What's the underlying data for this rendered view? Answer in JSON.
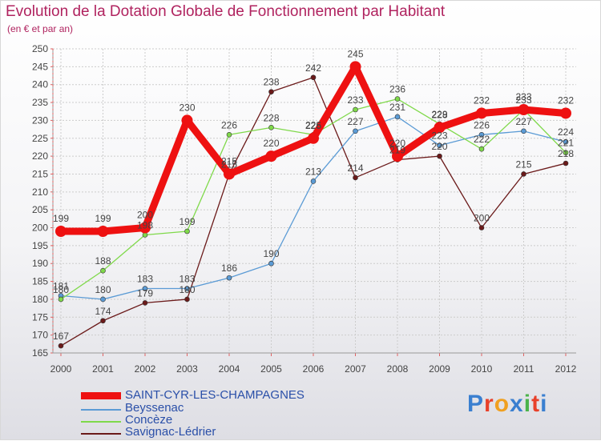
{
  "title": "Evolution de la Dotation Globale de Fonctionnement par Habitant",
  "subtitle": "(en € et par an)",
  "brand": "Proxiti",
  "chart_data": {
    "type": "line",
    "title": "Evolution de la Dotation Globale de Fonctionnement par Habitant",
    "ylabel": "(en € et par an)",
    "x": [
      "2000",
      "2001",
      "2002",
      "2003",
      "2004",
      "2005",
      "2006",
      "2007",
      "2008",
      "2009",
      "2010",
      "2011",
      "2012"
    ],
    "ylim": [
      165,
      250
    ],
    "yticks": [
      165,
      170,
      175,
      180,
      185,
      190,
      195,
      200,
      205,
      210,
      215,
      220,
      225,
      230,
      235,
      240,
      245,
      250
    ],
    "grid": true,
    "legend": "bottom",
    "series": [
      {
        "name": "Beyssenac",
        "color": "#5b9bd5",
        "values": [
          181,
          180,
          183,
          183,
          186,
          190,
          213,
          227,
          231,
          223,
          226,
          227,
          224
        ]
      },
      {
        "name": "Concèze",
        "color": "#7fd94a",
        "values": [
          180,
          188,
          198,
          199,
          226,
          228,
          226,
          233,
          236,
          229,
          222,
          233,
          221
        ]
      },
      {
        "name": "Savignac-Lédrier",
        "color": "#6b1a1a",
        "values": [
          167,
          174,
          179,
          180,
          215,
          238,
          242,
          214,
          219,
          220,
          200,
          215,
          218
        ]
      },
      {
        "name": "SAINT-CYR-LES-CHAMPAGNES",
        "color": "#ee1111",
        "values": [
          199,
          199,
          200,
          230,
          215,
          220,
          225,
          245,
          220,
          228,
          232,
          233,
          232
        ]
      }
    ]
  },
  "legend_order": [
    3,
    0,
    1,
    2
  ]
}
